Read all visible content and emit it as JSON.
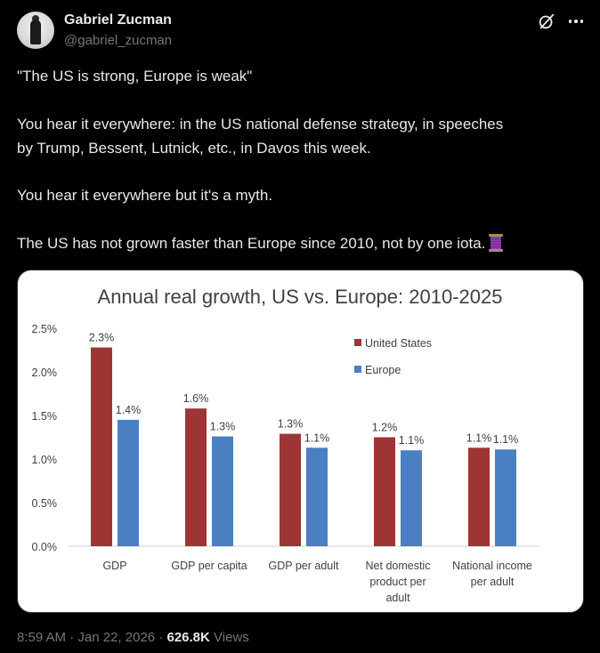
{
  "user": {
    "display_name": "Gabriel Zucman",
    "handle": "@gabriel_zucman"
  },
  "tweet": {
    "lines": [
      "\"The US is strong, Europe is weak\"",
      "You hear it everywhere: in the US national defense strategy, in speeches",
      "by Trump, Bessent, Lutnick, etc., in Davos this week.",
      "You hear it everywhere but it's a myth.",
      "The US has not grown faster than Europe since 2010, not by one iota."
    ],
    "emoji": "thread-emoji"
  },
  "meta": {
    "time": "8:59 AM",
    "sep1": "·",
    "date": "Jan 22, 2026",
    "sep2": "·",
    "views_count": "626.8K",
    "views_label": "Views"
  },
  "icons": {
    "grok": "grok-icon",
    "more": "more-icon"
  },
  "colors": {
    "us": "#9e3535",
    "europe": "#4a7fc1",
    "background": "#000000",
    "text": "#e7e9ea",
    "muted": "#71767b"
  },
  "chart_data": {
    "type": "bar",
    "title": "Annual real growth, US vs. Europe: 2010-2025",
    "categories": [
      [
        "GDP"
      ],
      [
        "GDP per capita"
      ],
      [
        "GDP per adult"
      ],
      [
        "Net domestic",
        "product per",
        "adult"
      ],
      [
        "National income",
        "per adult"
      ]
    ],
    "series": [
      {
        "name": "United States",
        "values": [
          2.28,
          1.58,
          1.29,
          1.25,
          1.13
        ],
        "labels": [
          "2.3%",
          "1.6%",
          "1.3%",
          "1.2%",
          "1.1%"
        ]
      },
      {
        "name": "Europe",
        "values": [
          1.45,
          1.26,
          1.13,
          1.1,
          1.11
        ],
        "labels": [
          "1.4%",
          "1.3%",
          "1.1%",
          "1.1%",
          "1.1%"
        ]
      }
    ],
    "ylim": [
      0,
      2.5
    ],
    "yticks": [
      "0.0%",
      "0.5%",
      "1.0%",
      "1.5%",
      "2.0%",
      "2.5%"
    ],
    "ytick_values": [
      0,
      0.5,
      1.0,
      1.5,
      2.0,
      2.5
    ],
    "grid": false,
    "legend": "top-right",
    "xlabel": "",
    "ylabel": ""
  }
}
